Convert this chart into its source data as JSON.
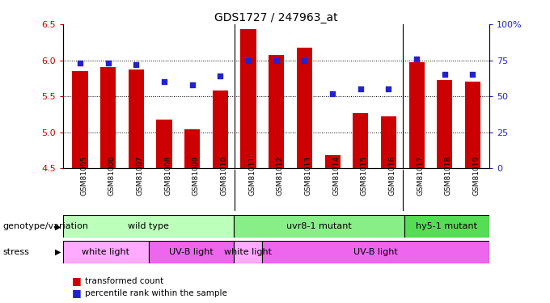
{
  "title": "GDS1727 / 247963_at",
  "samples": [
    "GSM81005",
    "GSM81006",
    "GSM81007",
    "GSM81008",
    "GSM81009",
    "GSM81010",
    "GSM81011",
    "GSM81012",
    "GSM81013",
    "GSM81014",
    "GSM81015",
    "GSM81016",
    "GSM81017",
    "GSM81018",
    "GSM81019"
  ],
  "bar_values": [
    5.85,
    5.9,
    5.87,
    5.17,
    5.04,
    5.58,
    6.43,
    6.07,
    6.18,
    4.68,
    5.27,
    5.22,
    5.97,
    5.72,
    5.7
  ],
  "percentile_values": [
    73,
    73,
    72,
    60,
    58,
    64,
    75,
    75,
    75,
    52,
    55,
    55,
    76,
    65,
    65
  ],
  "ylim_left": [
    4.5,
    6.5
  ],
  "ylim_right": [
    0,
    100
  ],
  "yticks_left": [
    4.5,
    5.0,
    5.5,
    6.0,
    6.5
  ],
  "yticks_right": [
    0,
    25,
    50,
    75,
    100
  ],
  "bar_color": "#cc0000",
  "dot_color": "#2222cc",
  "bar_width": 0.55,
  "genotype_groups": [
    {
      "label": "wild type",
      "start": 0,
      "end": 6,
      "color": "#bbffbb"
    },
    {
      "label": "uvr8-1 mutant",
      "start": 6,
      "end": 12,
      "color": "#88ee88"
    },
    {
      "label": "hy5-1 mutant",
      "start": 12,
      "end": 15,
      "color": "#55dd55"
    }
  ],
  "stress_groups": [
    {
      "label": "white light",
      "start": 0,
      "end": 3,
      "color": "#ffaaff"
    },
    {
      "label": "UV-B light",
      "start": 3,
      "end": 6,
      "color": "#ee66ee"
    },
    {
      "label": "white light",
      "start": 6,
      "end": 7,
      "color": "#ffaaff"
    },
    {
      "label": "UV-B light",
      "start": 7,
      "end": 15,
      "color": "#ee66ee"
    }
  ],
  "legend_bar_label": "transformed count",
  "legend_dot_label": "percentile rank within the sample",
  "tick_label_color_left": "#cc0000",
  "tick_label_color_right": "#2222cc",
  "bg_color": "#ffffff",
  "annotation_genotype": "genotype/variation",
  "annotation_stress": "stress",
  "xticklabel_bg": "#cccccc"
}
